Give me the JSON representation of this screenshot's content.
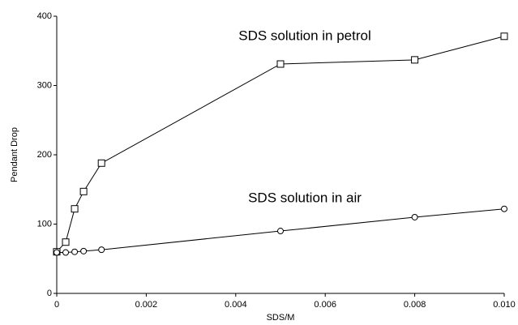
{
  "chart_data": {
    "type": "line",
    "xlabel": "SDS/M",
    "ylabel": "Pendant Drop",
    "x": [
      0,
      0.0002,
      0.0004,
      0.0006,
      0.001,
      0.005,
      0.008,
      0.01
    ],
    "series": [
      {
        "name": "SDS solution in petrol",
        "color": "#000000",
        "marker": "square",
        "values": [
          60,
          74,
          122,
          147,
          188,
          331,
          337,
          371
        ]
      },
      {
        "name": "SDS solution in air",
        "color": "#000000",
        "marker": "circle",
        "values": [
          59,
          59,
          60,
          61,
          63,
          90,
          110,
          122
        ]
      }
    ],
    "xlim": [
      0,
      0.01
    ],
    "xticks": [
      0,
      0.002,
      0.004,
      0.006,
      0.008,
      {
        "value": 0.01,
        "label": "0.010"
      }
    ],
    "ylim": [
      0,
      400
    ],
    "yticks": [
      0,
      100,
      200,
      300,
      400
    ],
    "grid": false
  }
}
